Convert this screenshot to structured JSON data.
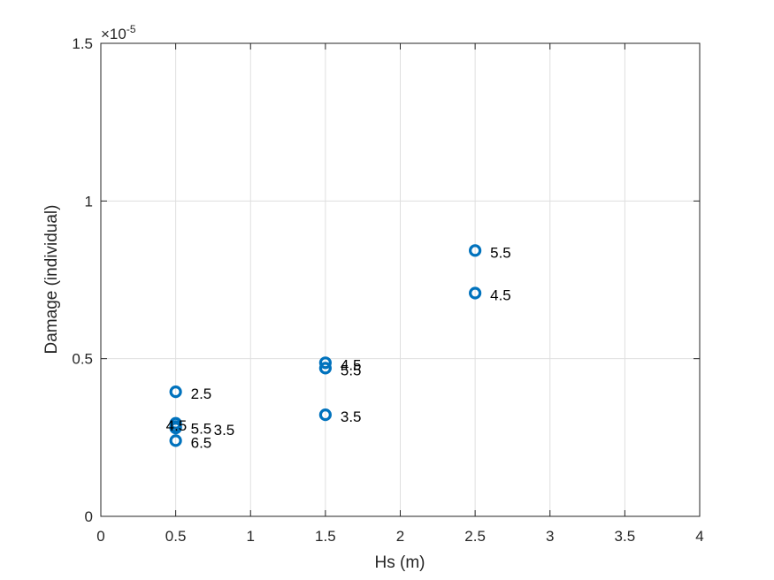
{
  "chart_data": {
    "type": "scatter",
    "title": "",
    "xlabel": "Hs (m)",
    "ylabel": "Damage (individual)",
    "exponent_base": "×10",
    "exponent_power": "-5",
    "xlim": [
      0,
      4
    ],
    "ylim": [
      0,
      1.5
    ],
    "xticks": [
      "0",
      "0.5",
      "1",
      "1.5",
      "2",
      "2.5",
      "3",
      "3.5",
      "4"
    ],
    "yticks": [
      "0",
      "0.5",
      "1",
      "1.5"
    ],
    "grid": true,
    "marker_color": "#0072BD",
    "points": [
      {
        "x": 0.5,
        "y": 0.395,
        "label": "2.5"
      },
      {
        "x": 0.5,
        "y": 0.295,
        "label": "4.5"
      },
      {
        "x": 0.5,
        "y": 0.285,
        "label": "5.5"
      },
      {
        "x": 0.5,
        "y": 0.28,
        "label": "3.5"
      },
      {
        "x": 0.5,
        "y": 0.24,
        "label": "6.5"
      },
      {
        "x": 1.5,
        "y": 0.487,
        "label": "4.5"
      },
      {
        "x": 1.5,
        "y": 0.47,
        "label": "5.5"
      },
      {
        "x": 1.5,
        "y": 0.322,
        "label": "3.5"
      },
      {
        "x": 2.5,
        "y": 0.843,
        "label": "5.5"
      },
      {
        "x": 2.5,
        "y": 0.708,
        "label": "4.5"
      }
    ]
  }
}
